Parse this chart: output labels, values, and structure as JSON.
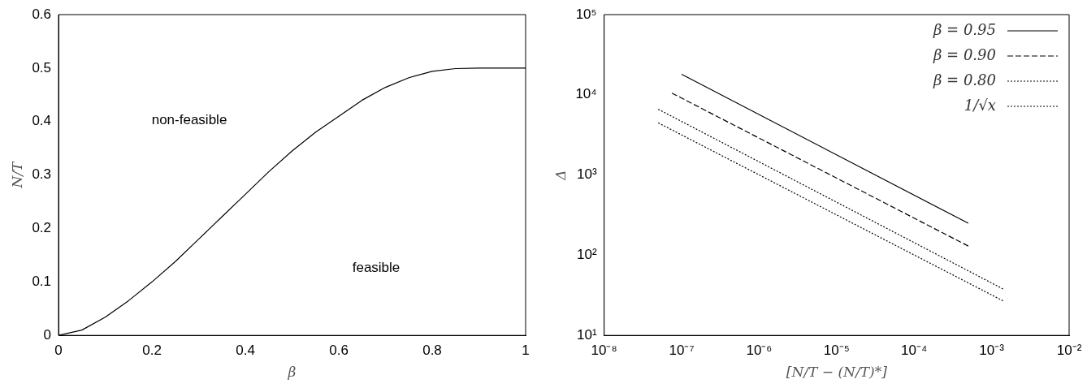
{
  "chart_data": [
    {
      "type": "line",
      "xlabel": "β",
      "ylabel": "N/T",
      "x": [
        0,
        0.05,
        0.1,
        0.15,
        0.2,
        0.25,
        0.3,
        0.35,
        0.4,
        0.45,
        0.5,
        0.55,
        0.6,
        0.65,
        0.7,
        0.75,
        0.8,
        0.85,
        0.9,
        0.95,
        1
      ],
      "series": [
        {
          "color": "#000000",
          "values": [
            0,
            0.01,
            0.034,
            0.065,
            0.1,
            0.138,
            0.18,
            0.222,
            0.264,
            0.306,
            0.345,
            0.38,
            0.41,
            0.44,
            0.464,
            0.482,
            0.494,
            0.499,
            0.5,
            0.5,
            0.5
          ]
        }
      ],
      "xlim": [
        0,
        1
      ],
      "xticks": [
        0,
        0.2,
        0.4,
        0.6,
        0.8,
        1
      ],
      "ylim": [
        0,
        0.6
      ],
      "yticks": [
        0,
        0.1,
        0.2,
        0.3,
        0.4,
        0.5,
        0.6
      ],
      "annotations": [
        "non-feasible",
        "feasible"
      ],
      "grid": false,
      "legend": false,
      "marker": "none",
      "line_style": "solid"
    },
    {
      "type": "line",
      "xlabel": "[N/T − (N/T)*]",
      "ylabel": "Δ",
      "log": "xy",
      "series": [
        {
          "name": "β = 0.95",
          "color": "#000000",
          "line_style": "solid",
          "x": [
            1e-07,
            0.0005
          ],
          "values": [
            18000,
            250
          ]
        },
        {
          "name": "β = 0.90",
          "color": "#000000",
          "line_style": "dashed",
          "x": [
            7.5e-08,
            0.0005
          ],
          "values": [
            10500,
            130
          ]
        },
        {
          "name": "β = 0.80",
          "color": "#000000",
          "line_style": "dotted",
          "x": [
            5e-08,
            0.0014
          ],
          "values": [
            6600,
            38
          ]
        },
        {
          "name": "1/√x",
          "color": "#000000",
          "line_style": "dotted",
          "x": [
            5e-08,
            0.0014
          ],
          "values": [
            4470,
            27
          ]
        }
      ],
      "xlim": [
        1e-08,
        0.01
      ],
      "xticks": [
        {
          "value": 1e-08,
          "label": "10⁻⁸"
        },
        {
          "value": 1e-07,
          "label": "10⁻⁷"
        },
        {
          "value": 1e-06,
          "label": "10⁻⁶"
        },
        {
          "value": 1e-05,
          "label": "10⁻⁵"
        },
        {
          "value": 0.0001,
          "label": "10⁻⁴"
        },
        {
          "value": 0.001,
          "label": "10⁻³"
        },
        {
          "value": 0.01,
          "label": "10⁻²"
        }
      ],
      "ylim": [
        10,
        100000
      ],
      "yticks": [
        {
          "value": 10,
          "label": "10¹"
        },
        {
          "value": 100,
          "label": "10²"
        },
        {
          "value": 1000,
          "label": "10³"
        },
        {
          "value": 10000,
          "label": "10⁴"
        },
        {
          "value": 100000,
          "label": "10⁵"
        }
      ],
      "grid": false,
      "legend": "top right",
      "marker": "none"
    }
  ]
}
